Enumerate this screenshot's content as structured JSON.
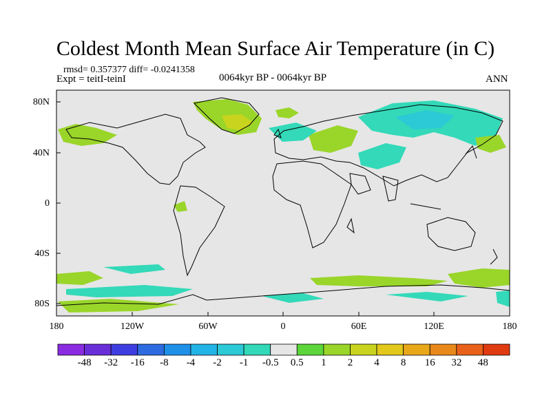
{
  "title": "Coldest Month Mean Surface Air Temperature (in C)",
  "stats": "rmsd= 0.357377  diff= -0.0241358",
  "expt": "Expt = teitI-teinI",
  "period": "0064kyr BP - 0064kyr BP",
  "season": "ANN",
  "lat_ticks": [
    "80N",
    "40N",
    "0",
    "40S",
    "80S"
  ],
  "lon_ticks": [
    "180",
    "120W",
    "60W",
    "0",
    "60E",
    "120E",
    "180"
  ],
  "colorbar": {
    "colors": [
      "#8a2be2",
      "#6a2ed9",
      "#3e3ee0",
      "#2d6be0",
      "#1e90e8",
      "#22b4e6",
      "#2cc9d6",
      "#33d9b8",
      "#e6e6e6",
      "#5cd63a",
      "#9ad52a",
      "#c8d41e",
      "#e2c81a",
      "#e8a81a",
      "#e8881a",
      "#e8601a",
      "#e03a10"
    ],
    "labels": [
      "-48",
      "-32",
      "-16",
      "-8",
      "-4",
      "-2",
      "-1",
      "-0.5",
      "0.5",
      "1",
      "2",
      "4",
      "8",
      "16",
      "32",
      "48"
    ]
  },
  "colors": {
    "land_bg": "#e6e6e6",
    "cool": "#33d9b8",
    "warm": "#9ad52a",
    "warm2": "#c8d41e",
    "coast": "#000000"
  }
}
